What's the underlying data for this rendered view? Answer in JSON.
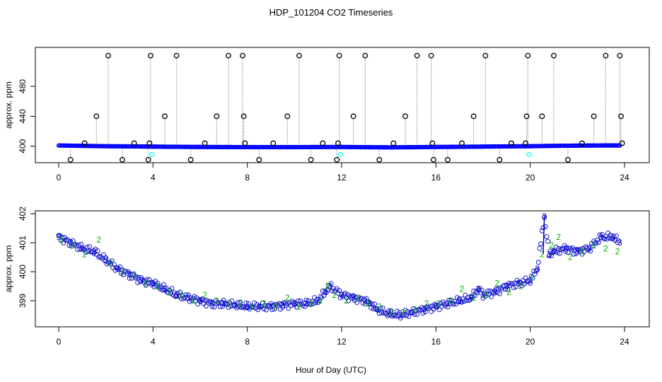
{
  "title": "HDP_101204  CO2 Timeseries",
  "xlabel": "Hour of Day (UTC)",
  "chart_data": [
    {
      "type": "scatter",
      "name": "top-panel",
      "title": "HDP_101204  CO2 Timeseries",
      "xlabel": "",
      "ylabel": "approx. ppm",
      "xlim": [
        0,
        24
      ],
      "ylim": [
        378,
        532
      ],
      "xticks": [
        0,
        4,
        8,
        12,
        16,
        20,
        24
      ],
      "yticks": [
        400,
        440,
        480
      ],
      "baseline": {
        "color": "#0000ff",
        "x": [
          0,
          1,
          2,
          3,
          4,
          5,
          6,
          7,
          8,
          9,
          10,
          11,
          12,
          13,
          14,
          15,
          16,
          17,
          18,
          19,
          20,
          21,
          22,
          23,
          23.8
        ],
        "values": [
          401,
          400.5,
          400,
          399.8,
          399.5,
          399.2,
          399,
          398.9,
          398.8,
          398.8,
          398.8,
          398.9,
          399,
          398.7,
          398.5,
          398.7,
          399,
          399.2,
          399.5,
          399.8,
          400,
          400.5,
          400.8,
          401,
          401
        ]
      },
      "spikes": {
        "color": "#000000",
        "x": [
          0.5,
          1.1,
          1.6,
          2.1,
          2.7,
          3.2,
          3.8,
          3.85,
          3.9,
          4.5,
          5.0,
          5.6,
          6.2,
          6.7,
          7.2,
          7.8,
          7.85,
          7.9,
          8.5,
          9.1,
          9.7,
          10.2,
          10.7,
          11.2,
          11.8,
          11.85,
          11.9,
          12.5,
          13.0,
          13.6,
          14.2,
          14.7,
          15.2,
          15.8,
          15.85,
          15.9,
          16.5,
          17.1,
          17.6,
          18.1,
          18.7,
          19.2,
          19.8,
          19.85,
          19.9,
          20.5,
          21.0,
          21.6,
          22.2,
          22.7,
          23.2,
          23.8,
          23.85,
          23.9
        ],
        "values": [
          382,
          404,
          440,
          521,
          382,
          404,
          382,
          404,
          521,
          440,
          521,
          382,
          404,
          440,
          521,
          521,
          440,
          404,
          382,
          404,
          440,
          521,
          382,
          404,
          382,
          404,
          521,
          440,
          521,
          382,
          404,
          440,
          521,
          521,
          404,
          382,
          382,
          404,
          440,
          521,
          382,
          404,
          404,
          440,
          521,
          440,
          521,
          382,
          404,
          440,
          521,
          521,
          440,
          404
        ]
      },
      "cyan_points": {
        "color": "#00ffff",
        "x": [
          3.95,
          11.95,
          19.95
        ],
        "values": [
          389,
          389,
          389
        ]
      }
    },
    {
      "type": "scatter",
      "name": "bottom-panel",
      "title": "",
      "xlabel": "Hour of Day (UTC)",
      "ylabel": "approx. ppm",
      "xlim": [
        0,
        24
      ],
      "ylim": [
        398.1,
        402.1
      ],
      "xticks": [
        0,
        4,
        8,
        12,
        16,
        20,
        24
      ],
      "yticks": [
        399,
        400,
        401,
        402
      ],
      "series": [
        {
          "name": "3",
          "color": "#0000cd",
          "x": [
            0,
            0.5,
            1,
            1.5,
            2,
            2.5,
            3,
            3.5,
            4,
            4.5,
            5,
            5.5,
            6,
            6.5,
            7,
            7.5,
            8,
            8.5,
            9,
            9.5,
            10,
            10.5,
            11,
            11.3,
            11.5,
            12,
            12.5,
            13,
            13.2,
            13.5,
            14,
            14.5,
            15,
            15.5,
            16,
            16.5,
            17,
            17.5,
            17.8,
            18,
            18.5,
            19,
            19.5,
            20,
            20.3,
            20.6,
            20.8,
            21,
            21.5,
            22,
            22.5,
            23,
            23.5,
            23.8
          ],
          "values": [
            401.2,
            401.0,
            400.8,
            400.7,
            400.4,
            400.1,
            399.9,
            399.7,
            399.6,
            399.4,
            399.2,
            399.1,
            399.0,
            398.9,
            398.9,
            398.85,
            398.8,
            398.8,
            398.8,
            398.85,
            398.9,
            398.9,
            399.0,
            399.3,
            399.5,
            399.2,
            399.1,
            399.0,
            398.9,
            398.7,
            398.55,
            398.5,
            398.6,
            398.7,
            398.8,
            398.9,
            399.0,
            399.1,
            399.4,
            399.2,
            399.3,
            399.5,
            399.6,
            399.7,
            400.1,
            401.9,
            400.6,
            400.7,
            400.8,
            400.7,
            400.8,
            401.2,
            401.2,
            401.0
          ]
        },
        {
          "name": "2",
          "color": "#00b000",
          "x": [
            0.1,
            0.6,
            1.1,
            1.7,
            2.2,
            2.7,
            3.2,
            3.7,
            4.2,
            4.7,
            5.2,
            5.7,
            6.2,
            6.7,
            7.2,
            7.7,
            8.2,
            8.7,
            9.2,
            9.7,
            10.2,
            10.7,
            11.1,
            11.4,
            11.7,
            12.2,
            12.7,
            13.1,
            13.6,
            14.1,
            14.6,
            15.1,
            15.6,
            16.1,
            16.6,
            17.1,
            17.6,
            18.1,
            18.6,
            19.1,
            19.6,
            20.1,
            20.5,
            20.9,
            21.2,
            21.7,
            22.2,
            22.7,
            23.2,
            23.7
          ],
          "values": [
            401.1,
            400.9,
            400.6,
            401.1,
            400.3,
            400.0,
            399.9,
            399.6,
            399.5,
            399.3,
            399.2,
            399.0,
            399.2,
            399.0,
            398.9,
            398.9,
            398.8,
            398.9,
            398.8,
            399.1,
            398.8,
            398.9,
            399.0,
            399.5,
            399.2,
            399.0,
            399.1,
            398.9,
            398.8,
            398.6,
            398.6,
            398.7,
            398.9,
            398.9,
            399.0,
            399.4,
            399.1,
            399.2,
            399.6,
            399.3,
            399.5,
            399.8,
            400.6,
            400.9,
            401.2,
            400.5,
            400.7,
            400.9,
            400.8,
            400.7
          ]
        }
      ]
    }
  ]
}
